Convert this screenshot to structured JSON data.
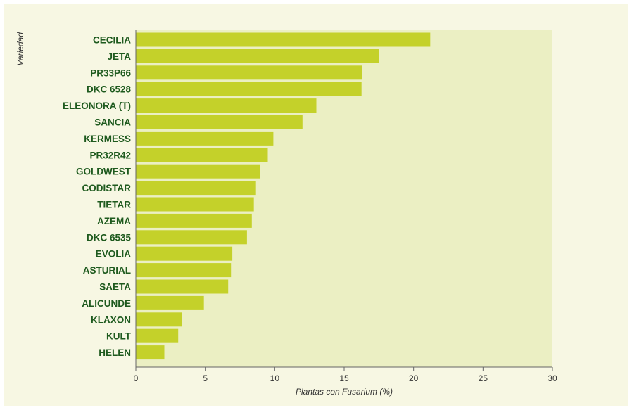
{
  "chart_data": {
    "type": "bar",
    "orientation": "horizontal",
    "categories": [
      "CECILIA",
      "JETA",
      "PR33P66",
      "DKC 6528",
      "ELEONORA (T)",
      "SANCIA",
      "KERMESS",
      "PR32R42",
      "GOLDWEST",
      "CODISTAR",
      "TIETAR",
      "AZEMA",
      "DKC 6535",
      "EVOLIA",
      "ASTURIAL",
      "SAETA",
      "ALICUNDE",
      "KLAXON",
      "KULT",
      "HELEN"
    ],
    "values": [
      21.2,
      17.5,
      16.3,
      16.25,
      13.0,
      12.0,
      9.9,
      9.5,
      8.95,
      8.65,
      8.5,
      8.35,
      8.0,
      6.95,
      6.85,
      6.65,
      4.9,
      3.3,
      3.05,
      2.05
    ],
    "xlabel": "Plantas con Fusarium (%)",
    "ylabel": "Variedad",
    "xlim": [
      0,
      30
    ],
    "xticks": [
      0,
      5,
      10,
      15,
      20,
      25,
      30
    ],
    "grid": false,
    "colors": {
      "bar": "#c4d12a",
      "plot_background": "#ebefc3",
      "page_background": "#f7f7e3",
      "category_text": "#1e5a1e",
      "axis": "#666666"
    }
  }
}
